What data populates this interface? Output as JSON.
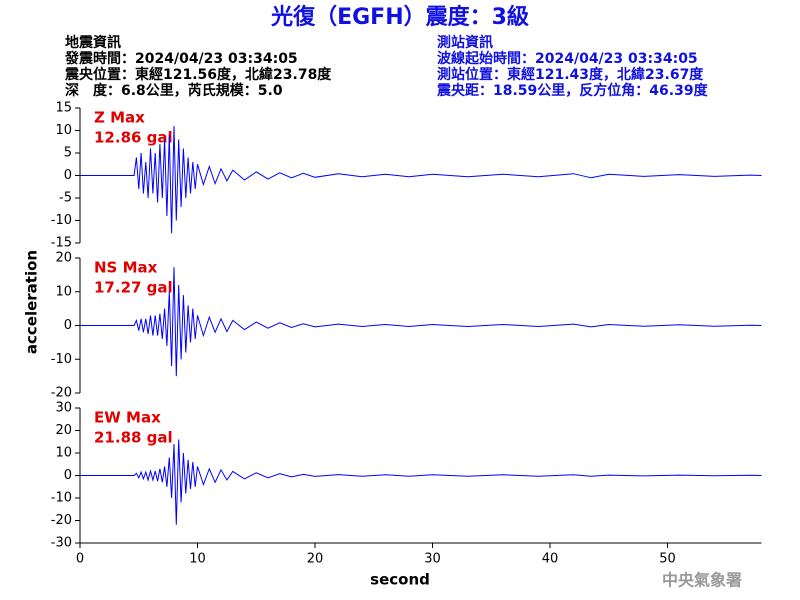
{
  "header": {
    "title": "光復（EGFH）震度：3級",
    "left": [
      "地震資訊",
      "發震時間：2024/04/23 03:34:05",
      "震央位置：東經121.56度，北緯23.78度",
      "深　度：6.8公里，芮氏規模：5.0"
    ],
    "right": [
      "測站資訊",
      "波線起始時間：2024/04/23 03:34:05",
      "測站位置：東經121.43度，北緯23.67度",
      "震央距：18.59公里，反方位角：46.39度"
    ],
    "y_label": "acceleration",
    "x_label": "second",
    "footer": "中央氣象署"
  },
  "chart_data": [
    {
      "type": "line",
      "annotation": [
        "Z Max",
        "12.86 gal"
      ],
      "color": "#0000ff",
      "annotation_color": "#e00000",
      "xlim": [
        0,
        58
      ],
      "ylim": [
        -15,
        15
      ],
      "yticks": [
        15,
        10,
        5,
        0,
        -5,
        -10,
        -15
      ],
      "x": [
        0,
        4.6,
        4.8,
        5.0,
        5.2,
        5.4,
        5.6,
        5.8,
        6.0,
        6.2,
        6.4,
        6.6,
        6.8,
        7.0,
        7.2,
        7.4,
        7.6,
        7.8,
        8.0,
        8.2,
        8.4,
        8.6,
        8.8,
        9.0,
        9.2,
        9.4,
        9.6,
        9.8,
        10,
        10.5,
        11,
        11.5,
        12,
        12.5,
        13,
        14,
        15,
        16,
        17,
        18,
        19,
        20,
        22,
        24,
        26,
        28,
        30,
        33,
        36,
        39,
        42,
        43.5,
        45,
        48,
        51,
        54,
        57,
        58
      ],
      "series": [
        {
          "name": "Z",
          "values": [
            0,
            0,
            4,
            -3,
            5,
            -4,
            3,
            -5,
            6,
            -4,
            5,
            -6,
            7,
            -5,
            8,
            -9,
            9,
            -12.86,
            11,
            -10,
            8,
            -7,
            6,
            -5,
            4,
            -4,
            3,
            -3,
            2.5,
            -2,
            2,
            -1.8,
            1.5,
            -1.2,
            1.2,
            -1,
            0.8,
            -0.8,
            0.6,
            -0.5,
            0.5,
            -0.4,
            0.4,
            -0.3,
            0.3,
            -0.3,
            0.3,
            -0.3,
            0.3,
            -0.3,
            0.4,
            -0.5,
            0.3,
            -0.2,
            0.2,
            -0.2,
            0.1,
            0
          ]
        }
      ]
    },
    {
      "type": "line",
      "annotation": [
        "NS Max",
        "17.27 gal"
      ],
      "color": "#0000ff",
      "annotation_color": "#e00000",
      "xlim": [
        0,
        58
      ],
      "ylim": [
        -20,
        20
      ],
      "yticks": [
        20,
        10,
        0,
        -10,
        -20
      ],
      "x": [
        0,
        4.6,
        4.8,
        5.0,
        5.2,
        5.4,
        5.6,
        5.8,
        6.0,
        6.2,
        6.4,
        6.6,
        6.8,
        7.0,
        7.2,
        7.4,
        7.6,
        7.8,
        8.0,
        8.2,
        8.4,
        8.6,
        8.8,
        9.0,
        9.2,
        9.4,
        9.6,
        9.8,
        10,
        10.5,
        11,
        11.5,
        12,
        12.5,
        13,
        14,
        15,
        16,
        17,
        18,
        19,
        20,
        22,
        24,
        26,
        28,
        30,
        33,
        36,
        39,
        42,
        43.5,
        45,
        48,
        51,
        54,
        57,
        58
      ],
      "series": [
        {
          "name": "NS",
          "values": [
            0,
            0,
            1.5,
            -1.5,
            2,
            -2,
            2,
            -2.5,
            3,
            -3,
            3,
            -3,
            3.5,
            -4,
            5,
            -6,
            10,
            -12,
            17.27,
            -15,
            12,
            -10,
            9,
            -8,
            6,
            -5,
            5,
            -4,
            3,
            -3,
            2.5,
            -2,
            2,
            -1.8,
            1.5,
            -1.2,
            1,
            -0.8,
            0.8,
            -0.6,
            0.5,
            -0.4,
            0.4,
            -0.3,
            0.3,
            -0.3,
            0.3,
            -0.3,
            0.3,
            -0.3,
            0.4,
            -0.4,
            0.3,
            -0.2,
            0.2,
            -0.2,
            0.1,
            0
          ]
        }
      ]
    },
    {
      "type": "line",
      "annotation": [
        "EW Max",
        "21.88 gal"
      ],
      "color": "#0000ff",
      "annotation_color": "#e00000",
      "xlim": [
        0,
        58
      ],
      "ylim": [
        -30,
        30
      ],
      "yticks": [
        30,
        20,
        10,
        0,
        -10,
        -20,
        -30
      ],
      "xticks": [
        0,
        10,
        20,
        30,
        40,
        50
      ],
      "x": [
        0,
        4.6,
        4.8,
        5.0,
        5.2,
        5.4,
        5.6,
        5.8,
        6.0,
        6.2,
        6.4,
        6.6,
        6.8,
        7.0,
        7.2,
        7.4,
        7.6,
        7.8,
        8.0,
        8.2,
        8.4,
        8.6,
        8.8,
        9.0,
        9.2,
        9.4,
        9.6,
        9.8,
        10,
        10.5,
        11,
        11.5,
        12,
        12.5,
        13,
        14,
        15,
        16,
        17,
        18,
        19,
        20,
        22,
        24,
        26,
        28,
        30,
        33,
        36,
        39,
        42,
        43.5,
        45,
        48,
        51,
        54,
        57,
        58
      ],
      "series": [
        {
          "name": "EW",
          "values": [
            0,
            0,
            1,
            -1,
            1.5,
            -1.5,
            1.5,
            -2,
            2,
            -2,
            2,
            -2.5,
            3,
            -3,
            4,
            -5,
            8,
            -10,
            14,
            -21.88,
            16,
            -12,
            10,
            -8,
            7,
            -6,
            6,
            -5,
            4,
            -4,
            3,
            -3,
            2.5,
            -2,
            1.8,
            -1.5,
            1.2,
            -1,
            0.8,
            -0.6,
            0.5,
            -0.4,
            0.4,
            -0.3,
            0.3,
            -0.3,
            0.3,
            -0.3,
            0.3,
            -0.3,
            0.3,
            -0.3,
            0.2,
            -0.2,
            0.2,
            -0.1,
            0.1,
            0
          ]
        }
      ]
    }
  ]
}
